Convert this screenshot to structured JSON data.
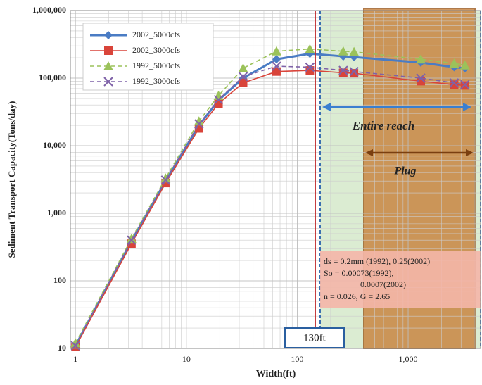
{
  "chart_data": {
    "type": "line",
    "x_label": "Width(ft)",
    "y_label": "Sediment Transport Capacity(Tons/day)",
    "x": [
      1,
      3.2,
      6.5,
      13,
      19.5,
      32.5,
      65,
      130,
      260,
      325,
      1300,
      2600,
      3250
    ],
    "series": [
      {
        "name": "2002_5000cfs",
        "color": "#4a7cc4",
        "marker": "diamond",
        "dash": false,
        "values": [
          11,
          390,
          3000,
          20000,
          47000,
          100000,
          190000,
          230000,
          210000,
          205000,
          170000,
          145000,
          140000
        ]
      },
      {
        "name": "2002_3000cfs",
        "color": "#d9443a",
        "marker": "square",
        "dash": false,
        "values": [
          10.5,
          355,
          2800,
          18000,
          42000,
          85000,
          125000,
          130000,
          120000,
          118000,
          90000,
          80000,
          78000
        ]
      },
      {
        "name": "1992_5000cfs",
        "color": "#9bc25a",
        "marker": "triangle",
        "dash": true,
        "values": [
          12,
          420,
          3300,
          23000,
          55000,
          140000,
          250000,
          270000,
          250000,
          245000,
          190000,
          165000,
          155000
        ]
      },
      {
        "name": "1992_3000cfs",
        "color": "#7f62a8",
        "marker": "x",
        "dash": true,
        "values": [
          11,
          400,
          3100,
          21000,
          48000,
          105000,
          150000,
          145000,
          130000,
          125000,
          100000,
          85000,
          80000
        ]
      }
    ],
    "x_log": true,
    "y_log": true,
    "xlim": [
      0.9,
      4500
    ],
    "ylim": [
      10,
      1000000
    ],
    "xticks": [
      1,
      10,
      100,
      {
        "value": 1000,
        "label": "1,000"
      }
    ],
    "yticks": [
      10,
      100,
      {
        "value": 1000,
        "label": "1,000"
      },
      {
        "value": 10000,
        "label": "10,000"
      },
      {
        "value": 100000,
        "label": "100,000"
      },
      {
        "value": 1000000,
        "label": "1,000,000"
      }
    ],
    "grid": true,
    "minor_grid": true,
    "legend": "upper left",
    "annotations": {
      "entire_reach": "Entire reach",
      "plug": "Plug",
      "width_marker": "130ft",
      "params": [
        "ds = 0.2mm (1992), 0.25(2002)",
        "So = 0.00073(1992),",
        "0.0007(2002)",
        "n = 0.026, G = 2.65"
      ]
    }
  }
}
